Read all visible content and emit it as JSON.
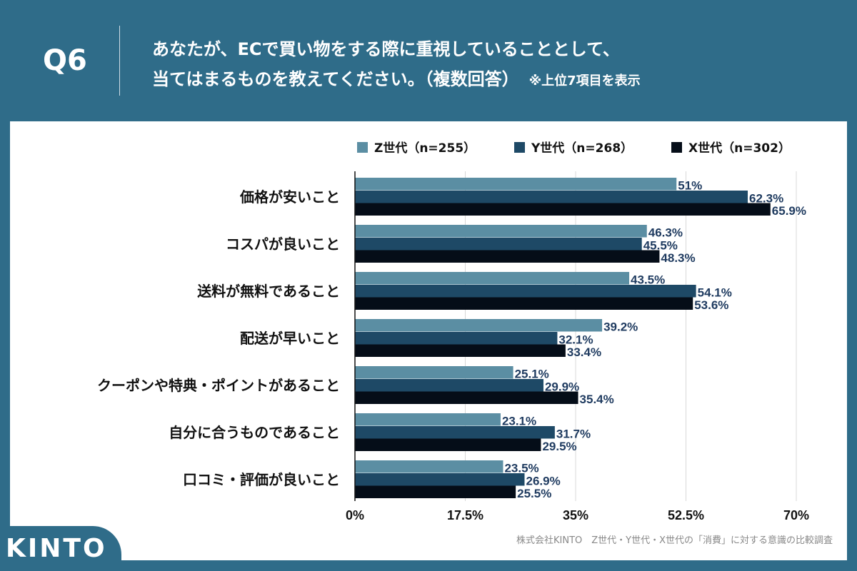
{
  "header": {
    "q_label": "Q6",
    "title_line1": "あなたが、ECで買い物をする際に重視していることとして、",
    "title_line2": "当てはまるものを教えてください。（複数回答）",
    "note": "※上位7項目を表示"
  },
  "footer": {
    "logo": "KINTO",
    "source": "株式会社KINTO　Z世代・Y世代・X世代の「消費」に対する意識の比較調査"
  },
  "chart_data": {
    "type": "bar",
    "orientation": "horizontal",
    "categories": [
      "価格が安いこと",
      "コスパが良いこと",
      "送料が無料であること",
      "配送が早いこと",
      "クーポンや特典・ポイントがあること",
      "自分に合うものであること",
      "口コミ・評価が良いこと"
    ],
    "series": [
      {
        "name": "Z世代（n=255）",
        "color": "#5b8ea3",
        "values": [
          51,
          46.3,
          43.5,
          39.2,
          25.1,
          23.1,
          23.5
        ]
      },
      {
        "name": "Y世代（n=268）",
        "color": "#1e4966",
        "values": [
          62.3,
          45.5,
          54.1,
          32.1,
          29.9,
          31.7,
          26.9
        ]
      },
      {
        "name": "X世代（n=302）",
        "color": "#050d18",
        "values": [
          65.9,
          48.3,
          53.6,
          33.4,
          35.4,
          29.5,
          25.5
        ]
      }
    ],
    "data_labels": [
      [
        "51%",
        "46.3%",
        "43.5%",
        "39.2%",
        "25.1%",
        "23.1%",
        "23.5%"
      ],
      [
        "62.3%",
        "45.5%",
        "54.1%",
        "32.1%",
        "29.9%",
        "31.7%",
        "26.9%"
      ],
      [
        "65.9%",
        "48.3%",
        "53.6%",
        "33.4%",
        "35.4%",
        "29.5%",
        "25.5%"
      ]
    ],
    "xlim": [
      0,
      70
    ],
    "xticks": [
      "0%",
      "17.5%",
      "35%",
      "52.5%",
      "70%"
    ],
    "tick_values": [
      0,
      17.5,
      35,
      52.5,
      70
    ],
    "label_color": "#1e3a5f",
    "grid": true,
    "legend": "top"
  }
}
